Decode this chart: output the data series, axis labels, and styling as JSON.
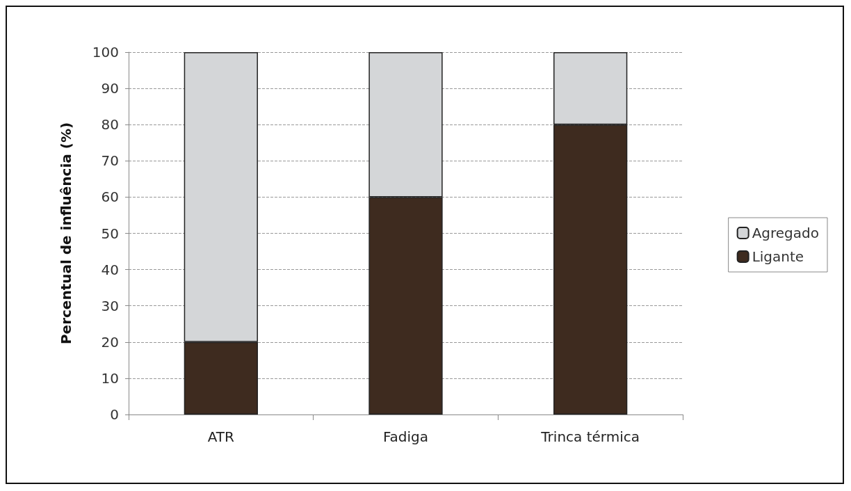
{
  "chart_data": {
    "type": "bar",
    "stacked": true,
    "ylabel": "Percentual de influência (%)",
    "categories": [
      "ATR",
      "Fadiga",
      "Trinca térmica"
    ],
    "series": [
      {
        "name": "Ligante",
        "color": "#3e2b1f",
        "values": [
          20,
          60,
          80
        ]
      },
      {
        "name": "Agregado",
        "color": "#d4d6d8",
        "values": [
          80,
          40,
          20
        ]
      }
    ],
    "ylim": [
      0,
      100
    ],
    "yticks": [
      0,
      10,
      20,
      30,
      40,
      50,
      60,
      70,
      80,
      90,
      100
    ],
    "grid": "y",
    "line_style": "dashed",
    "legend": "right"
  }
}
